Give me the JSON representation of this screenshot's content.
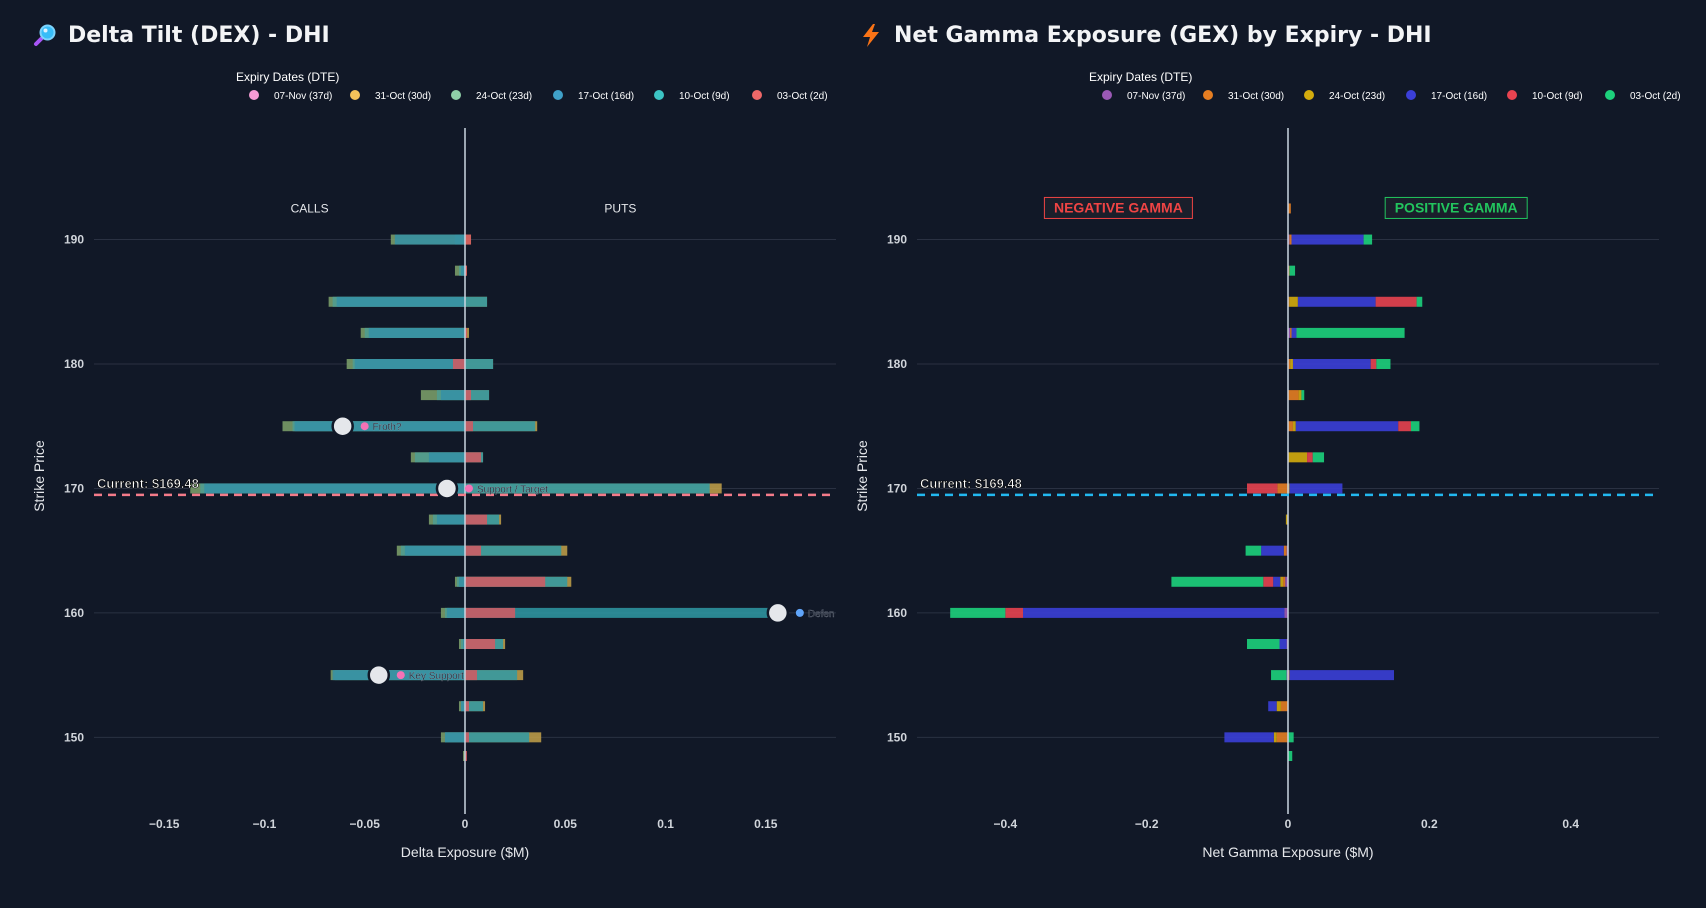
{
  "panels": [
    {
      "title": "Delta Tilt (DEX) - DHI",
      "icon": "magnifier-icon"
    },
    {
      "title": "Net Gamma Exposure (GEX) by Expiry - DHI",
      "icon": "lightning-icon"
    }
  ],
  "colors": {
    "background": "#111827",
    "grid": "#2a3142",
    "zero_line": "#cbd5e1",
    "dex_current_line": "#f47b8a",
    "gex_current_line": "#22b8f0",
    "negative_gamma": "#ef4444",
    "positive_gamma": "#22c55e"
  },
  "chart_data": [
    {
      "type": "bar",
      "orientation": "horizontal",
      "barmode": "overlay",
      "title": "Delta Tilt (DEX) - DHI",
      "xlabel": "Delta Exposure ($M)",
      "ylabel": "Strike Price",
      "xlim": [
        -0.185,
        0.185
      ],
      "ylim": [
        144,
        198
      ],
      "xticks": [
        -0.15,
        -0.1,
        -0.05,
        0,
        0.05,
        0.1,
        0.15
      ],
      "xtick_labels": [
        "−0.15",
        "−0.1",
        "−0.05",
        "0",
        "0.05",
        "0.1",
        "0.15"
      ],
      "yticks": [
        150,
        160,
        170,
        180,
        190
      ],
      "yticks_labels": [
        "150",
        "160",
        "170",
        "180",
        "190"
      ],
      "legend": {
        "title": "Expiry Dates (DTE)",
        "position": "top"
      },
      "side_labels": {
        "left": "CALLS",
        "right": "PUTS"
      },
      "current_price": {
        "value": 169.48,
        "label": "Current: $169.48"
      },
      "strikes": [
        190,
        187.5,
        185,
        182.5,
        180,
        177.5,
        175,
        172.5,
        170,
        167.5,
        165,
        162.5,
        160,
        157.5,
        155,
        152.5,
        150,
        148.5
      ],
      "series": [
        {
          "name": "07-Nov (37d)",
          "color": "#f59bd5",
          "bar_color": "#7fa36c",
          "values": [
            -0.037,
            -0.005,
            -0.068,
            -0.052,
            -0.059,
            -0.022,
            -0.091,
            -0.027,
            -0.137,
            -0.018,
            -0.034,
            -0.005,
            -0.012,
            -0.003,
            -0.067,
            -0.003,
            -0.012,
            -0.001
          ]
        },
        {
          "name": "31-Oct (30d)",
          "color": "#f5c35a",
          "bar_color": "#c4a24a",
          "values": [
            0.003,
            0.001,
            0.011,
            0.002,
            0.014,
            0.012,
            0.036,
            0.009,
            0.128,
            0.018,
            0.051,
            0.053,
            0.001,
            0.02,
            0.029,
            0.01,
            0.038,
            0.0
          ]
        },
        {
          "name": "24-Oct (23d)",
          "color": "#8fcfa8",
          "bar_color": "#4f9d93",
          "values": [
            -0.005,
            -0.003,
            -0.066,
            -0.05,
            -0.056,
            -0.014,
            -0.086,
            -0.025,
            -0.132,
            -0.016,
            -0.032,
            -0.004,
            -0.01,
            -0.002,
            -0.065,
            -0.002,
            -0.01,
            0.0
          ]
        },
        {
          "name": "17-Oct (16d)",
          "color": "#3fa0c8",
          "bar_color": "#3590a6",
          "values": [
            -0.035,
            -0.002,
            -0.064,
            -0.048,
            -0.055,
            -0.012,
            -0.085,
            -0.018,
            -0.13,
            -0.014,
            -0.03,
            -0.003,
            -0.009,
            -0.001,
            -0.066,
            -0.002,
            -0.01,
            0.0
          ]
        },
        {
          "name": "10-Oct (9d)",
          "color": "#3cc4c4",
          "bar_color": "#2f9aa6",
          "values": [
            0.0,
            0.0,
            0.011,
            0.0,
            0.014,
            0.012,
            0.035,
            0.009,
            0.122,
            0.017,
            0.048,
            0.051,
            0.155,
            0.019,
            0.026,
            0.009,
            0.032,
            0.0
          ]
        },
        {
          "name": "03-Oct (2d)",
          "color": "#ef6868",
          "bar_color": "#d65860",
          "values": [
            0.003,
            0.001,
            0.0,
            0.001,
            -0.006,
            0.003,
            0.004,
            0.008,
            0.0,
            0.011,
            0.008,
            0.04,
            0.025,
            0.015,
            0.006,
            0.002,
            0.002,
            0.001
          ]
        }
      ],
      "annotations": [
        {
          "strike": 175,
          "x": -0.061,
          "label": "Froth?"
        },
        {
          "strike": 170,
          "x": -0.009,
          "label": "Support / Target"
        },
        {
          "strike": 160,
          "x": 0.156,
          "label": "Defen"
        },
        {
          "strike": 155,
          "x": -0.043,
          "label": "Key Support"
        }
      ]
    },
    {
      "type": "bar",
      "orientation": "horizontal",
      "barmode": "stack",
      "title": "Net Gamma Exposure (GEX) by Expiry - DHI",
      "xlabel": "Net Gamma Exposure ($M)",
      "ylabel": "Strike Price",
      "xlim": [
        -0.525,
        0.525
      ],
      "ylim": [
        144,
        198
      ],
      "xticks": [
        -0.4,
        -0.2,
        0,
        0.2,
        0.4
      ],
      "xtick_labels": [
        "−0.4",
        "−0.2",
        "0",
        "0.2",
        "0.4"
      ],
      "yticks": [
        150,
        160,
        170,
        180,
        190
      ],
      "yticks_labels": [
        "150",
        "160",
        "170",
        "180",
        "190"
      ],
      "legend": {
        "title": "Expiry Dates (DTE)",
        "position": "top"
      },
      "side_labels": {
        "left": "NEGATIVE GAMMA",
        "right": "POSITIVE GAMMA"
      },
      "current_price": {
        "value": 169.48,
        "label": "Current: $169.48"
      },
      "strikes": [
        192.5,
        190,
        187.5,
        185,
        182.5,
        180,
        177.5,
        175,
        172.5,
        170,
        167.5,
        165,
        162.5,
        160,
        157.5,
        155,
        152.5,
        150,
        148.5
      ],
      "series": [
        {
          "name": "07-Nov (37d)",
          "color": "#9b59b6",
          "values": [
            0.0,
            0.002,
            0.0,
            0.0,
            0.003,
            0.0,
            0.0,
            0.0,
            0.0,
            0.0,
            0.0,
            -0.002,
            -0.004,
            -0.005,
            -0.002,
            -0.002,
            0.0,
            0.0,
            0.0
          ]
        },
        {
          "name": "31-Oct (30d)",
          "color": "#e67e22",
          "values": [
            0.004,
            0.003,
            0.002,
            0.002,
            0.002,
            0.003,
            0.015,
            0.007,
            0.001,
            -0.015,
            0.0,
            -0.004,
            -0.003,
            0.0,
            0.0,
            0.002,
            -0.01,
            -0.016,
            0.0
          ]
        },
        {
          "name": "24-Oct (23d)",
          "color": "#d4ac0d",
          "values": [
            0.0,
            0.0,
            0.0,
            0.012,
            0.0,
            0.004,
            0.004,
            0.004,
            0.026,
            0.002,
            -0.003,
            0.0,
            -0.004,
            0.0,
            0.0,
            0.0,
            -0.006,
            -0.004,
            0.0
          ]
        },
        {
          "name": "17-Oct (16d)",
          "color": "#3b3fd8",
          "values": [
            0.0,
            0.102,
            0.0,
            0.11,
            0.007,
            0.11,
            0.0,
            0.145,
            0.0,
            0.075,
            0.0,
            -0.032,
            -0.01,
            -0.37,
            -0.01,
            0.148,
            -0.012,
            -0.07,
            0.0
          ]
        },
        {
          "name": "10-Oct (9d)",
          "color": "#e84350",
          "values": [
            0.0,
            0.0,
            0.0,
            0.058,
            0.0,
            0.008,
            0.0,
            0.018,
            0.008,
            -0.043,
            0.0,
            0.0,
            -0.014,
            -0.025,
            0.0,
            0.0,
            0.0,
            0.0,
            0.0
          ]
        },
        {
          "name": "03-Oct (2d)",
          "color": "#1dd17c",
          "values": [
            0.0,
            0.012,
            0.008,
            0.008,
            0.153,
            0.02,
            0.004,
            0.012,
            0.016,
            0.0,
            0.0,
            -0.022,
            -0.13,
            -0.078,
            -0.046,
            -0.022,
            0.0,
            0.008,
            0.006
          ]
        }
      ]
    }
  ]
}
